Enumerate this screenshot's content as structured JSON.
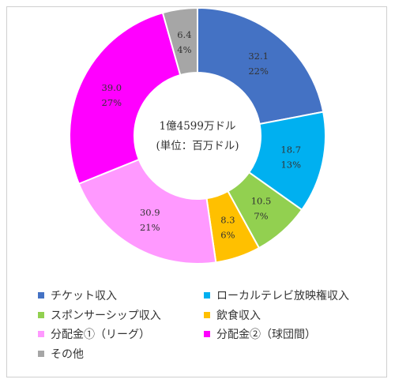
{
  "chart_data": {
    "type": "pie",
    "center_label": [
      "1億4599万ドル",
      "(単位：百万ドル)"
    ],
    "legend_position": "bottom",
    "slices": [
      {
        "name": "チケット収入",
        "value": 32.1,
        "percent": "22%",
        "color": "#4472C4"
      },
      {
        "name": "ローカルテレビ放映権収入",
        "value": 18.7,
        "percent": "13%",
        "color": "#00B0F0"
      },
      {
        "name": "スポンサーシップ収入",
        "value": 10.5,
        "percent": "7%",
        "color": "#92D050"
      },
      {
        "name": "飲食収入",
        "value": 8.3,
        "percent": "6%",
        "color": "#FFC000"
      },
      {
        "name": "分配金①（リーグ）",
        "value": 30.9,
        "percent": "21%",
        "color": "#FF99FF"
      },
      {
        "name": "分配金②（球団間）",
        "value": 39.0,
        "percent": "27%",
        "color": "#FF00FF"
      },
      {
        "name": "その他",
        "value": 6.4,
        "percent": "4%",
        "color": "#A6A6A6"
      }
    ]
  }
}
